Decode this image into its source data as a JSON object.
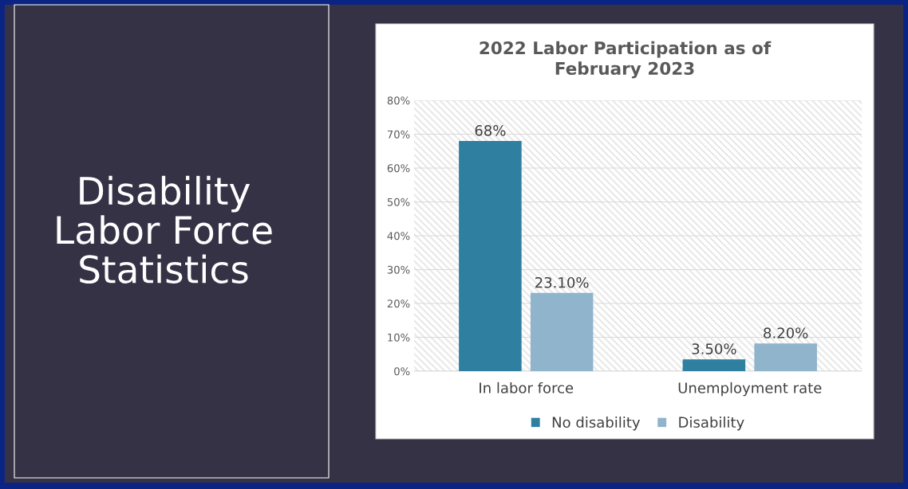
{
  "chart_data": {
    "type": "bar",
    "title": "2022 Labor Participation as of\nFebruary 2023",
    "annotations": [
      "Disability\nLabor Force\nStatistics"
    ],
    "categories": [
      "In labor force",
      "Unemployment rate"
    ],
    "series": [
      {
        "name": "No disability",
        "color": "#2e7fa0",
        "values": [
          68,
          3.5
        ],
        "value_labels": [
          "68%",
          "3.50%"
        ]
      },
      {
        "name": "Disability",
        "color": "#8fb4cc",
        "values": [
          23.1,
          8.2
        ],
        "value_labels": [
          "23.10%",
          "8.20%"
        ]
      }
    ],
    "ylim": [
      0,
      80
    ],
    "yticks": [
      {
        "value": 0,
        "label": "0%"
      },
      {
        "value": 10,
        "label": "10%"
      },
      {
        "value": 20,
        "label": "20%"
      },
      {
        "value": 30,
        "label": "30%"
      },
      {
        "value": 40,
        "label": "40%"
      },
      {
        "value": 50,
        "label": "50%"
      },
      {
        "value": 60,
        "label": "60%"
      },
      {
        "value": 70,
        "label": "70%"
      },
      {
        "value": 80,
        "label": "80%"
      }
    ],
    "grid": "y",
    "legend": "bottom"
  }
}
